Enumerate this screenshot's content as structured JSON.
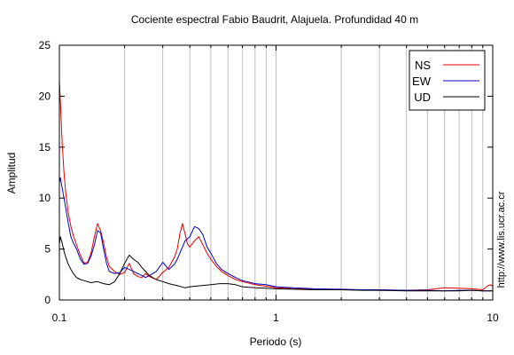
{
  "chart_data": {
    "type": "line",
    "title": "Cociente espectral Fabio Baudrit, Alajuela. Profundidad 40 m",
    "xlabel": "Periodo (s)",
    "ylabel": "Amplitud",
    "xscale": "log",
    "xlim": [
      0.1,
      10
    ],
    "ylim": [
      0,
      25
    ],
    "x_ticks": [
      {
        "value": 0.1,
        "label": "0.1"
      },
      {
        "value": 1,
        "label": "1"
      },
      {
        "value": 10,
        "label": "10"
      }
    ],
    "y_ticks": [
      {
        "value": 0,
        "label": "0"
      },
      {
        "value": 5,
        "label": "5"
      },
      {
        "value": 10,
        "label": "10"
      },
      {
        "value": 15,
        "label": "15"
      },
      {
        "value": 20,
        "label": "20"
      },
      {
        "value": 25,
        "label": "25"
      }
    ],
    "grid": "x-minor-log",
    "legend_position": "top-right",
    "side_text": "http://www.lis.ucr.ac.cr",
    "series": [
      {
        "name": "NS",
        "color": "#e00000",
        "points": [
          [
            0.1,
            21.5
          ],
          [
            0.101,
            19.5
          ],
          [
            0.103,
            15.5
          ],
          [
            0.105,
            12.5
          ],
          [
            0.107,
            10.5
          ],
          [
            0.11,
            8.5
          ],
          [
            0.113,
            7.2
          ],
          [
            0.116,
            6.3
          ],
          [
            0.12,
            5.4
          ],
          [
            0.125,
            4.4
          ],
          [
            0.13,
            3.6
          ],
          [
            0.135,
            3.7
          ],
          [
            0.14,
            4.6
          ],
          [
            0.145,
            6.2
          ],
          [
            0.15,
            7.5
          ],
          [
            0.155,
            6.8
          ],
          [
            0.16,
            5.6
          ],
          [
            0.165,
            4.2
          ],
          [
            0.17,
            3.3
          ],
          [
            0.18,
            2.8
          ],
          [
            0.19,
            2.5
          ],
          [
            0.2,
            2.7
          ],
          [
            0.21,
            3.6
          ],
          [
            0.22,
            2.6
          ],
          [
            0.23,
            2.3
          ],
          [
            0.24,
            2.2
          ],
          [
            0.25,
            2.6
          ],
          [
            0.26,
            2.3
          ],
          [
            0.28,
            2.0
          ],
          [
            0.3,
            2.7
          ],
          [
            0.32,
            3.2
          ],
          [
            0.34,
            4.2
          ],
          [
            0.35,
            5.0
          ],
          [
            0.36,
            6.5
          ],
          [
            0.37,
            7.5
          ],
          [
            0.38,
            6.5
          ],
          [
            0.39,
            5.5
          ],
          [
            0.4,
            5.2
          ],
          [
            0.42,
            5.8
          ],
          [
            0.44,
            6.2
          ],
          [
            0.46,
            5.4
          ],
          [
            0.48,
            4.6
          ],
          [
            0.5,
            4.0
          ],
          [
            0.53,
            3.3
          ],
          [
            0.56,
            2.8
          ],
          [
            0.6,
            2.4
          ],
          [
            0.65,
            2.0
          ],
          [
            0.7,
            1.8
          ],
          [
            0.8,
            1.5
          ],
          [
            0.9,
            1.35
          ],
          [
            1.0,
            1.2
          ],
          [
            1.2,
            1.1
          ],
          [
            1.5,
            1.05
          ],
          [
            2.0,
            1.0
          ],
          [
            2.5,
            1.0
          ],
          [
            3.0,
            0.95
          ],
          [
            4.0,
            0.95
          ],
          [
            5.0,
            1.0
          ],
          [
            6.0,
            1.2
          ],
          [
            7.0,
            1.15
          ],
          [
            8.0,
            1.1
          ],
          [
            9.0,
            1.0
          ],
          [
            9.5,
            1.4
          ],
          [
            9.8,
            1.5
          ],
          [
            10.0,
            1.3
          ]
        ]
      },
      {
        "name": "EW",
        "color": "#0000c0",
        "points": [
          [
            0.1,
            11.5
          ],
          [
            0.101,
            12.0
          ],
          [
            0.103,
            11.0
          ],
          [
            0.105,
            10.0
          ],
          [
            0.107,
            9.0
          ],
          [
            0.11,
            7.5
          ],
          [
            0.113,
            6.2
          ],
          [
            0.116,
            5.6
          ],
          [
            0.12,
            5.0
          ],
          [
            0.125,
            4.0
          ],
          [
            0.13,
            3.5
          ],
          [
            0.135,
            3.6
          ],
          [
            0.14,
            4.3
          ],
          [
            0.145,
            5.4
          ],
          [
            0.15,
            6.8
          ],
          [
            0.155,
            6.6
          ],
          [
            0.16,
            5.0
          ],
          [
            0.165,
            3.6
          ],
          [
            0.17,
            2.8
          ],
          [
            0.18,
            2.6
          ],
          [
            0.19,
            2.7
          ],
          [
            0.2,
            3.2
          ],
          [
            0.21,
            3.0
          ],
          [
            0.22,
            2.8
          ],
          [
            0.23,
            2.6
          ],
          [
            0.24,
            2.4
          ],
          [
            0.25,
            2.2
          ],
          [
            0.26,
            2.4
          ],
          [
            0.28,
            2.8
          ],
          [
            0.3,
            3.7
          ],
          [
            0.32,
            3.0
          ],
          [
            0.34,
            3.5
          ],
          [
            0.35,
            4.0
          ],
          [
            0.36,
            4.6
          ],
          [
            0.38,
            5.8
          ],
          [
            0.4,
            6.2
          ],
          [
            0.42,
            7.2
          ],
          [
            0.44,
            7.0
          ],
          [
            0.46,
            6.4
          ],
          [
            0.48,
            5.2
          ],
          [
            0.5,
            4.6
          ],
          [
            0.53,
            3.6
          ],
          [
            0.56,
            3.0
          ],
          [
            0.6,
            2.6
          ],
          [
            0.65,
            2.2
          ],
          [
            0.7,
            1.9
          ],
          [
            0.8,
            1.6
          ],
          [
            0.9,
            1.5
          ],
          [
            1.0,
            1.3
          ],
          [
            1.2,
            1.2
          ],
          [
            1.5,
            1.1
          ],
          [
            2.0,
            1.05
          ],
          [
            2.5,
            1.0
          ],
          [
            3.0,
            1.0
          ],
          [
            4.0,
            0.95
          ],
          [
            5.0,
            0.95
          ],
          [
            6.0,
            0.9
          ],
          [
            7.0,
            0.95
          ],
          [
            8.0,
            0.95
          ],
          [
            9.0,
            0.9
          ],
          [
            10.0,
            0.9
          ]
        ]
      },
      {
        "name": "UD",
        "color": "#000000",
        "points": [
          [
            0.1,
            5.5
          ],
          [
            0.101,
            6.2
          ],
          [
            0.103,
            5.6
          ],
          [
            0.105,
            4.8
          ],
          [
            0.107,
            4.2
          ],
          [
            0.11,
            3.5
          ],
          [
            0.113,
            3.0
          ],
          [
            0.116,
            2.6
          ],
          [
            0.12,
            2.2
          ],
          [
            0.125,
            2.0
          ],
          [
            0.13,
            1.9
          ],
          [
            0.14,
            1.7
          ],
          [
            0.15,
            1.8
          ],
          [
            0.16,
            1.6
          ],
          [
            0.17,
            1.5
          ],
          [
            0.18,
            1.8
          ],
          [
            0.19,
            2.6
          ],
          [
            0.2,
            3.6
          ],
          [
            0.21,
            4.4
          ],
          [
            0.22,
            4.0
          ],
          [
            0.23,
            3.7
          ],
          [
            0.24,
            3.2
          ],
          [
            0.25,
            2.8
          ],
          [
            0.26,
            2.4
          ],
          [
            0.28,
            2.0
          ],
          [
            0.3,
            1.8
          ],
          [
            0.32,
            1.6
          ],
          [
            0.35,
            1.4
          ],
          [
            0.38,
            1.2
          ],
          [
            0.4,
            1.3
          ],
          [
            0.45,
            1.4
          ],
          [
            0.5,
            1.5
          ],
          [
            0.55,
            1.6
          ],
          [
            0.6,
            1.6
          ],
          [
            0.65,
            1.5
          ],
          [
            0.7,
            1.3
          ],
          [
            0.8,
            1.2
          ],
          [
            0.9,
            1.15
          ],
          [
            1.0,
            1.1
          ],
          [
            1.2,
            1.05
          ],
          [
            1.5,
            1.0
          ],
          [
            2.0,
            1.0
          ],
          [
            2.5,
            0.95
          ],
          [
            3.0,
            0.95
          ],
          [
            4.0,
            0.9
          ],
          [
            5.0,
            0.9
          ],
          [
            6.0,
            0.9
          ],
          [
            7.0,
            0.9
          ],
          [
            8.0,
            0.95
          ],
          [
            9.0,
            0.9
          ],
          [
            10.0,
            0.9
          ]
        ]
      }
    ]
  }
}
